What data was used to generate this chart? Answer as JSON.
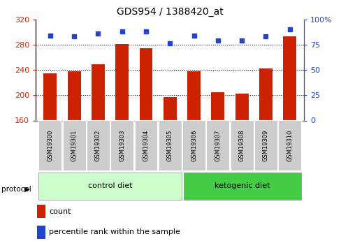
{
  "title": "GDS954 / 1388420_at",
  "samples": [
    "GSM19300",
    "GSM19301",
    "GSM19302",
    "GSM19303",
    "GSM19304",
    "GSM19305",
    "GSM19306",
    "GSM19307",
    "GSM19308",
    "GSM19309",
    "GSM19310"
  ],
  "bar_values": [
    235,
    238,
    249,
    281,
    274,
    197,
    238,
    205,
    203,
    242,
    293
  ],
  "dot_values": [
    84,
    83,
    86,
    88,
    88,
    76,
    84,
    79,
    79,
    83,
    90
  ],
  "ylim_left": [
    160,
    320
  ],
  "ylim_right": [
    0,
    100
  ],
  "yticks_left": [
    160,
    200,
    240,
    280,
    320
  ],
  "yticks_right": [
    0,
    25,
    50,
    75,
    100
  ],
  "bar_color": "#cc2200",
  "dot_color": "#2244cc",
  "control_label": "control diet",
  "ketogenic_label": "ketogenic diet",
  "protocol_label": "protocol",
  "legend_count": "count",
  "legend_percentile": "percentile rank within the sample",
  "control_bg": "#ccffcc",
  "ketogenic_bg": "#44cc44",
  "sample_bg": "#cccccc",
  "n_control": 6,
  "n_ketogenic": 5
}
